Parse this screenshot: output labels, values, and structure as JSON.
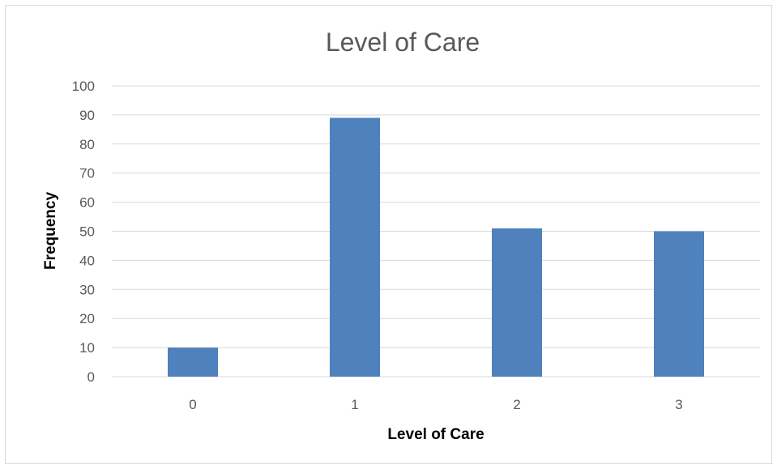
{
  "chart_data": {
    "type": "bar",
    "title": "Level of Care",
    "xlabel": "Level of Care",
    "ylabel": "Frequency",
    "categories": [
      "0",
      "1",
      "2",
      "3"
    ],
    "values": [
      10,
      89,
      51,
      50
    ],
    "ylim": [
      0,
      100
    ],
    "yticks": [
      0,
      10,
      20,
      30,
      40,
      50,
      60,
      70,
      80,
      90,
      100
    ],
    "grid": true,
    "legend": "none",
    "bar_color": "#4f81bd"
  }
}
